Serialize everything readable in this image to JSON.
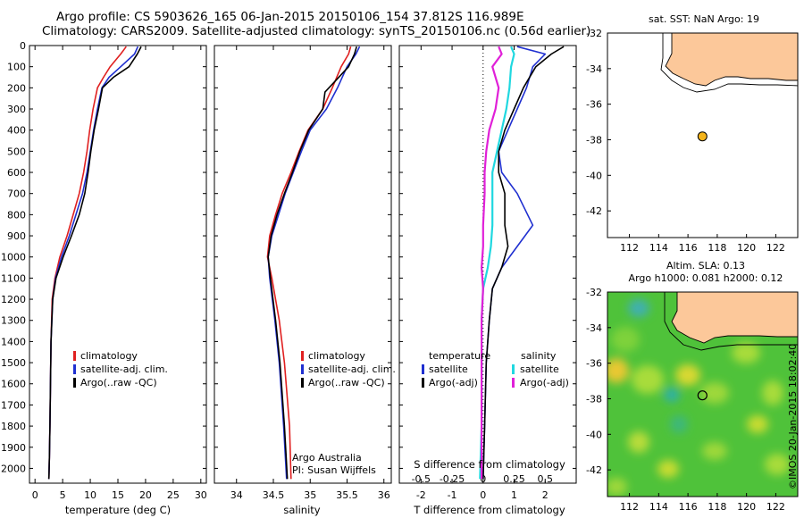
{
  "header": {
    "title_line1": "Argo profile: CS 5903626_165 06-Jan-2015 20150106_154 37.812S 116.989E",
    "title_line2": "Climatology: CARS2009. Satellite-adjusted climatology: synTS_20150106.nc (0.56d earlier)"
  },
  "footer": {
    "credit": "©IMOS 20-Jan-2015 18:02:40"
  },
  "colors": {
    "climatology": "#e02020",
    "satellite": "#1f2fd0",
    "argo": "#000000",
    "sal_satellite": "#20d8e0",
    "sal_argo": "#e020d8",
    "land": "#fcc89a"
  },
  "chart_data": [
    {
      "id": "temperature",
      "type": "line",
      "xlabel": "temperature (deg C)",
      "ylabel": "",
      "xlim": [
        -1,
        31
      ],
      "ylim": [
        2070,
        0
      ],
      "xticks": [
        "0",
        "5",
        "10",
        "15",
        "20",
        "25",
        "30"
      ],
      "yticks": [
        "0",
        "100",
        "200",
        "300",
        "400",
        "500",
        "600",
        "700",
        "800",
        "900",
        "1000",
        "1100",
        "1200",
        "1300",
        "1400",
        "1500",
        "1600",
        "1700",
        "1800",
        "1900",
        "2000"
      ],
      "grid": false,
      "legend": [
        "climatology",
        "satellite-adj. clim.",
        "Argo(..raw -QC)"
      ],
      "series": [
        {
          "name": "climatology",
          "x": [
            16.5,
            15.5,
            13.6,
            12.4,
            11.3,
            10.5,
            9.9,
            9.4,
            8.8,
            8.0,
            6.9,
            5.8,
            4.5,
            3.6,
            3.1,
            2.9,
            2.8,
            2.7,
            2.6,
            2.5
          ],
          "y": [
            5,
            40,
            100,
            150,
            200,
            300,
            400,
            500,
            600,
            700,
            800,
            900,
            1000,
            1100,
            1200,
            1400,
            1600,
            1800,
            1950,
            2050
          ]
        },
        {
          "name": "satellite-adj. clim.",
          "x": [
            18.6,
            18.0,
            15.5,
            13.4,
            12.1,
            11.3,
            10.6,
            10.0,
            9.4,
            8.6,
            7.4,
            6.2,
            4.8,
            3.7,
            3.2,
            2.9,
            2.8,
            2.7,
            2.6,
            2.5
          ],
          "y": [
            5,
            40,
            100,
            150,
            200,
            300,
            400,
            500,
            600,
            700,
            800,
            900,
            1000,
            1100,
            1200,
            1400,
            1600,
            1800,
            1950,
            2050
          ]
        },
        {
          "name": "Argo(..raw -QC)",
          "x": [
            19.2,
            18.5,
            17.0,
            14.2,
            12.2,
            11.5,
            10.7,
            10.1,
            9.6,
            9.0,
            8.0,
            6.6,
            5.1,
            3.8,
            3.2,
            2.9,
            2.8,
            2.7,
            2.6,
            2.5
          ],
          "y": [
            5,
            40,
            100,
            150,
            200,
            300,
            400,
            500,
            600,
            700,
            800,
            900,
            1000,
            1100,
            1200,
            1400,
            1600,
            1800,
            1950,
            2050
          ]
        }
      ]
    },
    {
      "id": "salinity",
      "type": "line",
      "xlabel": "salinity",
      "ylabel": "",
      "xlim": [
        33.7,
        36.1
      ],
      "ylim": [
        2070,
        0
      ],
      "xticks": [
        "34",
        "34.5",
        "35",
        "35.5",
        "36"
      ],
      "grid": false,
      "legend": [
        "climatology",
        "satellite-adj. clim.",
        "Argo(..raw -QC)"
      ],
      "annotation": [
        "Argo Australia",
        "PI: Susan Wijffels"
      ],
      "series": [
        {
          "name": "climatology",
          "x": [
            35.55,
            35.52,
            35.42,
            35.3,
            35.17,
            34.97,
            34.85,
            34.74,
            34.62,
            34.53,
            34.45,
            34.42,
            34.48,
            34.58,
            34.65,
            34.72,
            34.74
          ],
          "y": [
            5,
            40,
            100,
            200,
            300,
            400,
            500,
            600,
            700,
            800,
            900,
            1000,
            1100,
            1300,
            1500,
            1800,
            2050
          ]
        },
        {
          "name": "satellite-adj. clim.",
          "x": [
            35.67,
            35.62,
            35.5,
            35.37,
            35.22,
            35.0,
            34.88,
            34.77,
            34.66,
            34.57,
            34.48,
            34.43,
            34.45,
            34.52,
            34.58,
            34.64,
            34.68
          ],
          "y": [
            5,
            40,
            100,
            200,
            300,
            400,
            500,
            600,
            700,
            800,
            900,
            1000,
            1100,
            1300,
            1500,
            1800,
            2050
          ]
        },
        {
          "name": "Argo(..raw -QC)",
          "x": [
            35.63,
            35.6,
            35.52,
            35.2,
            35.17,
            34.98,
            34.86,
            34.76,
            34.65,
            34.55,
            34.47,
            34.43,
            34.46,
            34.53,
            34.59,
            34.65,
            34.69
          ],
          "y": [
            5,
            40,
            100,
            220,
            300,
            400,
            500,
            600,
            700,
            800,
            900,
            1000,
            1100,
            1300,
            1500,
            1800,
            2050
          ]
        }
      ]
    },
    {
      "id": "difference",
      "type": "line",
      "xlabel": "T difference from climatology",
      "xlabel_top": "S difference from climatology",
      "xlim": [
        -2.7,
        3.0
      ],
      "ylim": [
        2070,
        0
      ],
      "xticks": [
        "-2",
        "-1",
        "0",
        "1",
        "2"
      ],
      "xticks_top": [
        "-0.5",
        "-0.25",
        "0",
        "0.25",
        "0.5"
      ],
      "zero_line": "dotted",
      "grid": false,
      "legend_titles": [
        "temperature",
        "salinity"
      ],
      "legend": [
        "satellite",
        "Argo(-adj)",
        "satellite",
        "Argo(-adj)"
      ],
      "series": [
        {
          "name": "temperature satellite",
          "x": [
            1.1,
            2.0,
            1.6,
            1.4,
            1.1,
            0.8,
            0.5,
            0.6,
            1.1,
            1.6,
            1.1,
            0.6,
            0.3,
            0.2,
            0.1,
            0.05,
            0.0
          ],
          "y": [
            5,
            40,
            100,
            200,
            300,
            400,
            500,
            600,
            700,
            850,
            950,
            1050,
            1150,
            1300,
            1500,
            1800,
            2050
          ]
        },
        {
          "name": "temperature Argo(-adj)",
          "x": [
            2.6,
            2.2,
            1.7,
            1.3,
            1.0,
            0.7,
            0.5,
            0.5,
            0.7,
            0.7,
            0.8,
            0.6,
            0.3,
            0.2,
            0.1,
            0.05,
            0.0
          ],
          "y": [
            5,
            40,
            100,
            200,
            300,
            400,
            500,
            600,
            700,
            850,
            950,
            1050,
            1150,
            1300,
            1500,
            1800,
            2050
          ]
        },
        {
          "name": "salinity satellite",
          "x": [
            0.9,
            1.0,
            0.9,
            0.85,
            0.75,
            0.6,
            0.45,
            0.3,
            0.3,
            0.3,
            0.25,
            0.15,
            0.0,
            -0.05,
            -0.05,
            -0.05,
            -0.1
          ],
          "y": [
            5,
            40,
            100,
            200,
            300,
            400,
            500,
            600,
            700,
            850,
            950,
            1050,
            1150,
            1300,
            1500,
            1800,
            2050
          ]
        },
        {
          "name": "salinity Argo(-adj)",
          "x": [
            0.5,
            0.6,
            0.3,
            0.5,
            0.4,
            0.2,
            0.1,
            0.05,
            0.05,
            0.0,
            0.0,
            -0.05,
            0.0,
            -0.05,
            -0.05,
            -0.05,
            -0.05
          ],
          "y": [
            5,
            40,
            100,
            200,
            300,
            400,
            500,
            600,
            700,
            850,
            950,
            1050,
            1150,
            1300,
            1500,
            1800,
            2050
          ]
        }
      ]
    },
    {
      "id": "map_sst",
      "type": "scatter",
      "title": "sat. SST: NaN Argo: 19",
      "xlim": [
        110.5,
        123.5
      ],
      "ylim": [
        -43.5,
        -32
      ],
      "xticks": [
        "112",
        "114",
        "116",
        "118",
        "120",
        "122"
      ],
      "yticks": [
        "-32",
        "-34",
        "-36",
        "-38",
        "-40",
        "-42"
      ],
      "points": [
        {
          "x": 116.989,
          "y": -37.812
        }
      ]
    },
    {
      "id": "map_sla",
      "type": "heatmap",
      "title_line1": "Altim. SLA: 0.13",
      "title_line2": "Argo h1000: 0.081 h2000: 0.12",
      "xlim": [
        110.5,
        123.5
      ],
      "ylim": [
        -43.5,
        -32
      ],
      "xticks": [
        "112",
        "114",
        "116",
        "118",
        "120",
        "122"
      ],
      "yticks": [
        "-32",
        "-34",
        "-36",
        "-38",
        "-40",
        "-42"
      ],
      "points": [
        {
          "x": 116.989,
          "y": -37.812
        }
      ]
    }
  ]
}
